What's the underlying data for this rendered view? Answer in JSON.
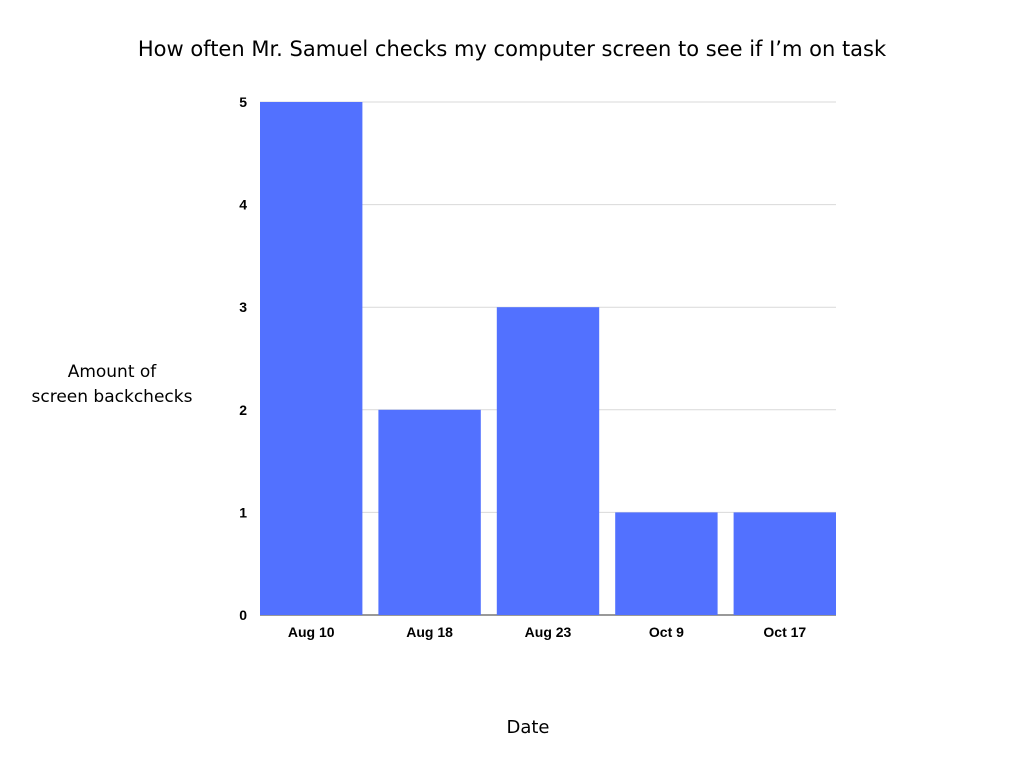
{
  "chart_data": {
    "type": "bar",
    "title": "How often Mr. Samuel checks my computer screen to see if I’m on task",
    "xlabel": "Date",
    "ylabel": [
      "Amount of",
      "screen backchecks"
    ],
    "categories": [
      "Aug 10",
      "Aug 18",
      "Aug 23",
      "Oct 9",
      "Oct 17"
    ],
    "values": [
      5,
      2,
      3,
      1,
      1
    ],
    "ylim": [
      0,
      5
    ],
    "yticks": [
      "0",
      "1",
      "2",
      "3",
      "4",
      "5"
    ],
    "grid": true,
    "legend": "none",
    "bar_color": "#5271ff",
    "grid_color": "#d9d9d9"
  }
}
